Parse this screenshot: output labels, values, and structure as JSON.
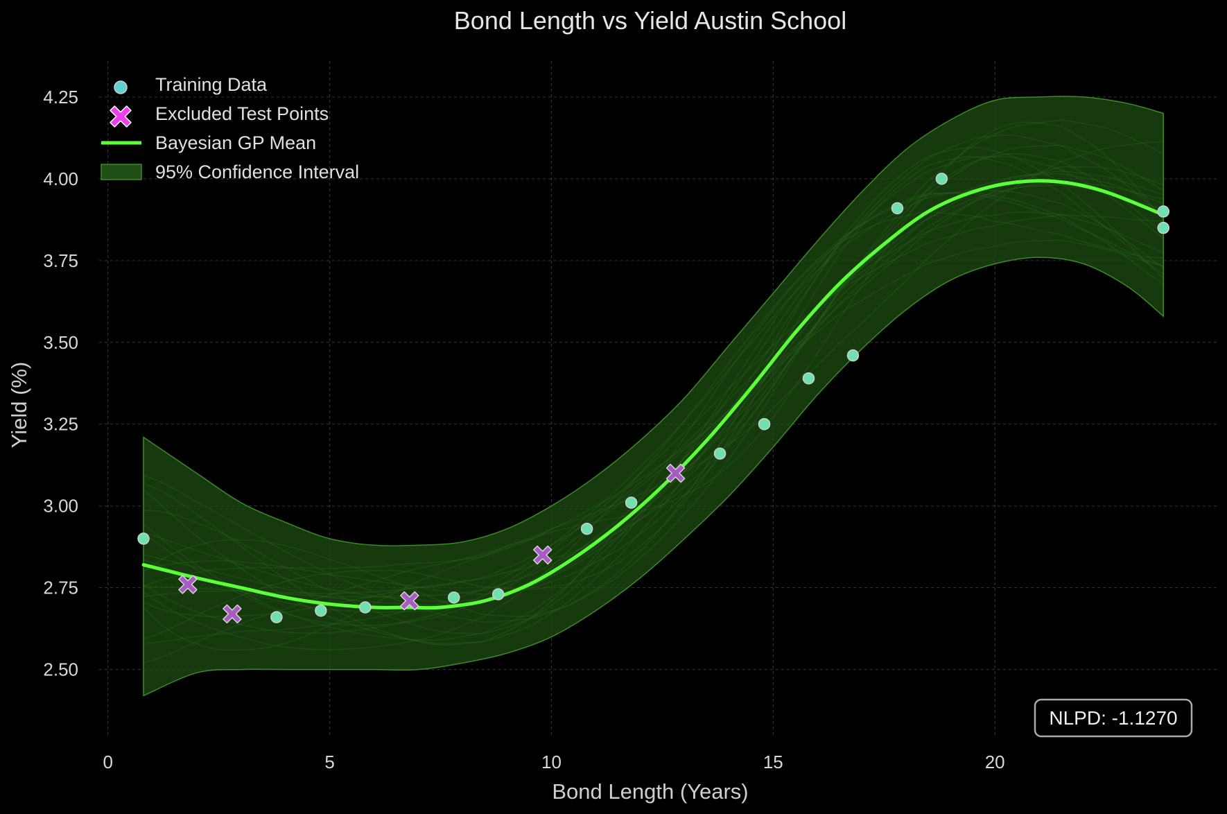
{
  "chart_data": {
    "type": "line",
    "title": "Bond Length vs Yield Austin School",
    "xlabel": "Bond Length (Years)",
    "ylabel": "Yield (%)",
    "xlim": [
      -0.2,
      25
    ],
    "ylim": [
      2.3,
      4.36
    ],
    "grid": true,
    "legend_position": "top-left",
    "x_ticks": [
      0,
      5,
      10,
      15,
      20
    ],
    "x_tick_labels": [
      "0",
      "5",
      "10",
      "15",
      "20"
    ],
    "y_ticks": [
      2.5,
      2.75,
      3.0,
      3.25,
      3.5,
      3.75,
      4.0,
      4.25
    ],
    "y_tick_labels": [
      "2.50",
      "2.75",
      "3.00",
      "3.25",
      "3.50",
      "3.75",
      "4.00",
      "4.25"
    ],
    "legend": {
      "training": "Training Data",
      "excluded": "Excluded Test Points",
      "mean": "Bayesian GP Mean",
      "ci": "95% Confidence Interval"
    },
    "training_data": [
      {
        "x": 0.8,
        "y": 2.9
      },
      {
        "x": 3.8,
        "y": 2.66
      },
      {
        "x": 4.8,
        "y": 2.68
      },
      {
        "x": 5.8,
        "y": 2.69
      },
      {
        "x": 7.8,
        "y": 2.72
      },
      {
        "x": 8.8,
        "y": 2.73
      },
      {
        "x": 10.8,
        "y": 2.93
      },
      {
        "x": 11.8,
        "y": 3.01
      },
      {
        "x": 13.8,
        "y": 3.16
      },
      {
        "x": 14.8,
        "y": 3.25
      },
      {
        "x": 15.8,
        "y": 3.39
      },
      {
        "x": 16.8,
        "y": 3.46
      },
      {
        "x": 17.8,
        "y": 3.91
      },
      {
        "x": 18.8,
        "y": 4.0
      },
      {
        "x": 23.8,
        "y": 3.9
      },
      {
        "x": 23.8,
        "y": 3.85
      }
    ],
    "excluded_test_points": [
      {
        "x": 1.8,
        "y": 2.76
      },
      {
        "x": 2.8,
        "y": 2.67
      },
      {
        "x": 6.8,
        "y": 2.71
      },
      {
        "x": 9.8,
        "y": 2.85
      },
      {
        "x": 12.8,
        "y": 3.1
      }
    ],
    "gp_mean": {
      "x": [
        0.8,
        2,
        3,
        4,
        5,
        6,
        6.8,
        7.5,
        8.5,
        9.5,
        10.5,
        11.5,
        12.5,
        13.5,
        14.5,
        15.5,
        16.5,
        17.5,
        18.5,
        19.5,
        20.5,
        21.5,
        22.5,
        23.8
      ],
      "y": [
        2.82,
        2.78,
        2.75,
        2.72,
        2.7,
        2.69,
        2.69,
        2.69,
        2.71,
        2.76,
        2.84,
        2.94,
        3.06,
        3.2,
        3.36,
        3.53,
        3.68,
        3.8,
        3.9,
        3.96,
        3.99,
        3.99,
        3.96,
        3.89
      ]
    },
    "ci_95": {
      "x": [
        0.8,
        2,
        3,
        4,
        5,
        6,
        7,
        8,
        9,
        10,
        11,
        12,
        13,
        14,
        15,
        16,
        17,
        18,
        19,
        20,
        21,
        22,
        23,
        23.8
      ],
      "lower": [
        2.42,
        2.49,
        2.5,
        2.5,
        2.5,
        2.5,
        2.5,
        2.52,
        2.55,
        2.6,
        2.68,
        2.78,
        2.9,
        3.03,
        3.18,
        3.34,
        3.48,
        3.6,
        3.69,
        3.74,
        3.76,
        3.74,
        3.67,
        3.58
      ],
      "upper": [
        3.21,
        3.1,
        3.01,
        2.95,
        2.9,
        2.88,
        2.88,
        2.89,
        2.93,
        3.0,
        3.09,
        3.2,
        3.33,
        3.49,
        3.65,
        3.81,
        3.96,
        4.09,
        4.18,
        4.24,
        4.25,
        4.25,
        4.23,
        4.2
      ]
    },
    "annotation": "NLPD: -1.1270"
  },
  "colors": {
    "background": "#000000",
    "grid": "#3a3a3a",
    "text": "#d8d8d8",
    "mean_line": "#5cff3a",
    "ci_fill": "#1f4f14",
    "ci_edge": "#3d8a2a",
    "training_fill": "#6fe0b0",
    "training_edge": "#d0d0d0",
    "excluded_fill": "#a65cc2",
    "excluded_edge": "#d8d8d8",
    "legend_excluded": "#ee3cf0",
    "legend_training": "#62cfd5"
  }
}
